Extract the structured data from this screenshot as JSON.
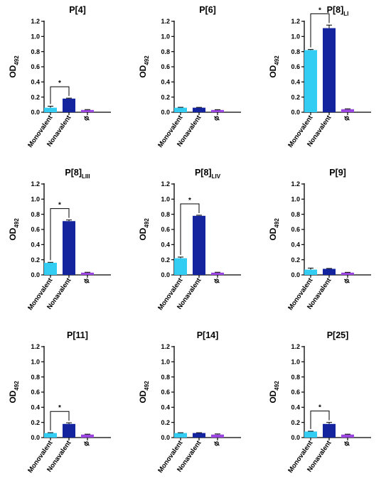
{
  "colors": {
    "monovalent": "#33ccf2",
    "nonavalent": "#14239e",
    "phi": "#9b45e0",
    "axis": "#000000"
  },
  "chart_data": [
    {
      "type": "bar",
      "title": "P[4]",
      "title_sub": "",
      "ylabel": "OD",
      "ylabel_sub": "492",
      "ylim": [
        0,
        1.2
      ],
      "yticks": [
        "0.0",
        "0.2",
        "0.4",
        "0.6",
        "0.8",
        "1.0",
        "1.2"
      ],
      "categories": [
        "Monovalent",
        "Nonavalent",
        "ϕ"
      ],
      "values": [
        0.06,
        0.18,
        0.03
      ],
      "errors": [
        0.02,
        0.006,
        0.005
      ],
      "significance": {
        "from": 0,
        "to": 1,
        "label": "*"
      }
    },
    {
      "type": "bar",
      "title": "P[6]",
      "title_sub": "",
      "ylabel": "OD",
      "ylabel_sub": "492",
      "ylim": [
        0,
        1.2
      ],
      "yticks": [
        "0.0",
        "0.2",
        "0.4",
        "0.6",
        "0.8",
        "1.0",
        "1.2"
      ],
      "categories": [
        "Monovalent",
        "Nonavalent",
        "ϕ"
      ],
      "values": [
        0.06,
        0.06,
        0.03
      ],
      "errors": [
        0.005,
        0.004,
        0.004
      ],
      "significance": null
    },
    {
      "type": "bar",
      "title": "P[8]",
      "title_sub": "LI",
      "ylabel": "OD",
      "ylabel_sub": "492",
      "ylim": [
        0,
        1.2
      ],
      "yticks": [
        "0.0",
        "0.2",
        "0.4",
        "0.6",
        "0.8",
        "1.0",
        "1.2"
      ],
      "categories": [
        "Monovalent",
        "Nonavalent",
        "ϕ"
      ],
      "values": [
        0.82,
        1.11,
        0.04
      ],
      "errors": [
        0.008,
        0.04,
        0.005
      ],
      "significance": {
        "from": 0,
        "to": 1,
        "label": "*"
      }
    },
    {
      "type": "bar",
      "title": "P[8]",
      "title_sub": "LIII",
      "ylabel": "OD",
      "ylabel_sub": "492",
      "ylim": [
        0,
        1.2
      ],
      "yticks": [
        "0.0",
        "0.2",
        "0.4",
        "0.6",
        "0.8",
        "1.0",
        "1.2"
      ],
      "categories": [
        "Monovalent",
        "Nonavalent",
        "ϕ"
      ],
      "values": [
        0.16,
        0.71,
        0.03
      ],
      "errors": [
        0.006,
        0.015,
        0.005
      ],
      "significance": {
        "from": 0,
        "to": 1,
        "label": "*"
      }
    },
    {
      "type": "bar",
      "title": "P[8]",
      "title_sub": "LIV",
      "ylabel": "OD",
      "ylabel_sub": "492",
      "ylim": [
        0,
        1.2
      ],
      "yticks": [
        "0.0",
        "0.2",
        "0.4",
        "0.6",
        "0.8",
        "1.0",
        "1.2"
      ],
      "categories": [
        "Monovalent",
        "Nonavalent",
        "ϕ"
      ],
      "values": [
        0.22,
        0.78,
        0.03
      ],
      "errors": [
        0.015,
        0.008,
        0.005
      ],
      "significance": {
        "from": 0,
        "to": 1,
        "label": "*"
      }
    },
    {
      "type": "bar",
      "title": "P[9]",
      "title_sub": "",
      "ylabel": "OD",
      "ylabel_sub": "492",
      "ylim": [
        0,
        1.2
      ],
      "yticks": [
        "0.0",
        "0.2",
        "0.4",
        "0.6",
        "0.8",
        "1.0",
        "1.2"
      ],
      "categories": [
        "Monovalent",
        "Nonavalent",
        "ϕ"
      ],
      "values": [
        0.07,
        0.08,
        0.03
      ],
      "errors": [
        0.02,
        0.005,
        0.004
      ],
      "significance": null
    },
    {
      "type": "bar",
      "title": "P[11]",
      "title_sub": "",
      "ylabel": "OD",
      "ylabel_sub": "492",
      "ylim": [
        0,
        1.2
      ],
      "yticks": [
        "0.0",
        "0.2",
        "0.4",
        "0.6",
        "0.8",
        "1.0",
        "1.2"
      ],
      "categories": [
        "Monovalent",
        "Nonavalent",
        "ϕ"
      ],
      "values": [
        0.06,
        0.18,
        0.04
      ],
      "errors": [
        0.005,
        0.015,
        0.005
      ],
      "significance": {
        "from": 0,
        "to": 1,
        "label": "*"
      }
    },
    {
      "type": "bar",
      "title": "P[14]",
      "title_sub": "",
      "ylabel": "OD",
      "ylabel_sub": "492",
      "ylim": [
        0,
        1.2
      ],
      "yticks": [
        "0.0",
        "0.2",
        "0.4",
        "0.6",
        "0.8",
        "1.0",
        "1.2"
      ],
      "categories": [
        "Monovalent",
        "Nonavalent",
        "ϕ"
      ],
      "values": [
        0.06,
        0.06,
        0.04
      ],
      "errors": [
        0.004,
        0.004,
        0.008
      ],
      "significance": null
    },
    {
      "type": "bar",
      "title": "P[25]",
      "title_sub": "",
      "ylabel": "OD",
      "ylabel_sub": "492",
      "ylim": [
        0,
        1.2
      ],
      "yticks": [
        "0.0",
        "0.2",
        "0.4",
        "0.6",
        "0.8",
        "1.0",
        "1.2"
      ],
      "categories": [
        "Monovalent",
        "Nonavalent",
        "ϕ"
      ],
      "values": [
        0.08,
        0.18,
        0.04
      ],
      "errors": [
        0.004,
        0.02,
        0.005
      ],
      "significance": {
        "from": 0,
        "to": 1,
        "label": "*"
      }
    }
  ]
}
